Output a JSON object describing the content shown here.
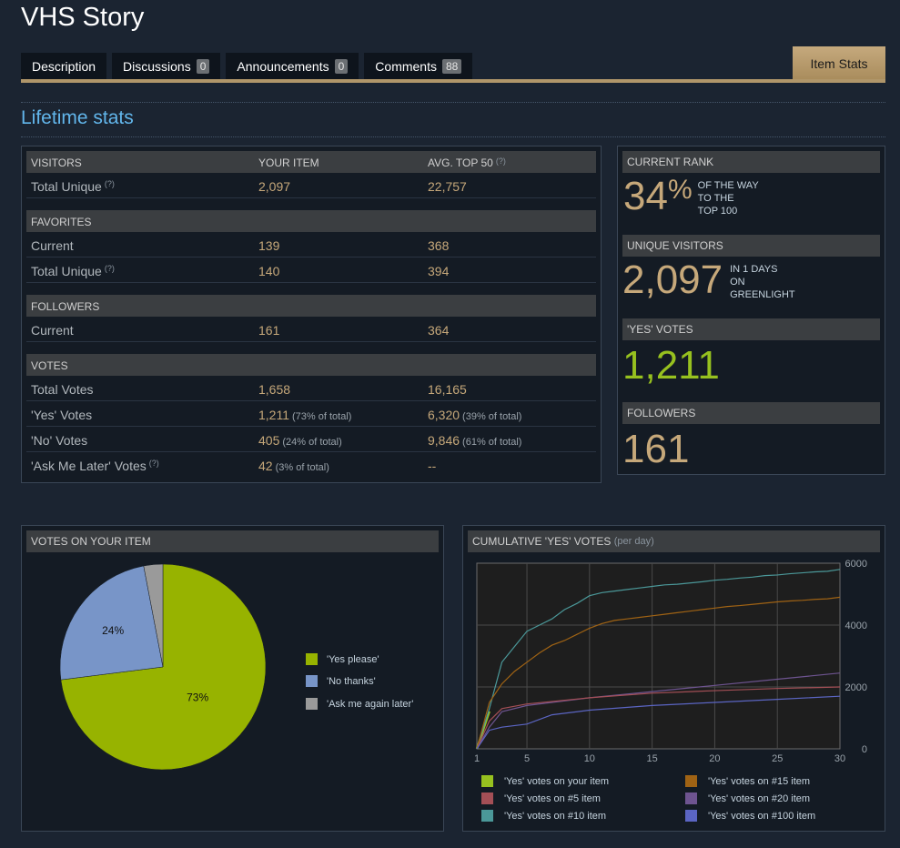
{
  "title": "VHS Story",
  "tabs": [
    {
      "label": "Description",
      "count": null
    },
    {
      "label": "Discussions",
      "count": "0"
    },
    {
      "label": "Announcements",
      "count": "0"
    },
    {
      "label": "Comments",
      "count": "88"
    }
  ],
  "active_tab": "Item Stats",
  "section_title": "Lifetime stats",
  "table": {
    "headers": {
      "col1": "VISITORS",
      "col2": "YOUR ITEM",
      "col3": "AVG. TOP 50",
      "q": "(?)"
    },
    "visitors_total_unique": {
      "label": "Total Unique",
      "q": "(?)",
      "yours": "2,097",
      "avg": "22,757"
    },
    "favorites_header": "FAVORITES",
    "favorites_current": {
      "label": "Current",
      "yours": "139",
      "avg": "368"
    },
    "favorites_total_unique": {
      "label": "Total Unique",
      "q": "(?)",
      "yours": "140",
      "avg": "394"
    },
    "followers_header": "FOLLOWERS",
    "followers_current": {
      "label": "Current",
      "yours": "161",
      "avg": "364"
    },
    "votes_header": "VOTES",
    "votes_total": {
      "label": "Total Votes",
      "yours": "1,658",
      "avg": "16,165"
    },
    "votes_yes": {
      "label": "'Yes' Votes",
      "yours": "1,211",
      "yours_pct": "(73% of total)",
      "avg": "6,320",
      "avg_pct": "(39% of total)"
    },
    "votes_no": {
      "label": "'No' Votes",
      "yours": "405",
      "yours_pct": "(24% of total)",
      "avg": "9,846",
      "avg_pct": "(61% of total)"
    },
    "votes_later": {
      "label": "'Ask Me Later' Votes",
      "q": "(?)",
      "yours": "42",
      "yours_pct": "(3% of total)",
      "avg": "--"
    }
  },
  "side": {
    "rank_header": "CURRENT RANK",
    "rank_value": "34",
    "rank_pct": "%",
    "rank_note": [
      "OF THE WAY",
      "TO THE",
      "TOP 100"
    ],
    "visitors_header": "UNIQUE VISITORS",
    "visitors_value": "2,097",
    "visitors_note": [
      "IN 1 DAYS",
      "ON",
      "GREENLIGHT"
    ],
    "yes_header": "'YES' VOTES",
    "yes_value": "1,211",
    "followers_header": "FOLLOWERS",
    "followers_value": "161"
  },
  "pie_panel": {
    "header": "VOTES ON YOUR ITEM",
    "legend": [
      "'Yes please'",
      "'No thanks'",
      "'Ask me again later'"
    ],
    "colors": [
      "#97b300",
      "#7895c8",
      "#9a9a9a"
    ]
  },
  "line_panel": {
    "header": "CUMULATIVE 'YES' VOTES",
    "subheader": "(per day)",
    "legend": [
      "'Yes' votes on your item",
      "'Yes' votes on #15 item",
      "'Yes' votes on #5 item",
      "'Yes' votes on #20 item",
      "'Yes' votes on #10 item",
      "'Yes' votes on #100 item"
    ],
    "legend_colors": [
      "#97c11f",
      "#a06314",
      "#a44f56",
      "#6e5490",
      "#4b9899",
      "#5b65c3"
    ]
  },
  "chart_data": [
    {
      "type": "pie",
      "title": "VOTES ON YOUR ITEM",
      "categories": [
        "'Yes please'",
        "'No thanks'",
        "'Ask me again later'"
      ],
      "values": [
        73,
        24,
        3
      ],
      "labels": [
        "73%",
        "24%",
        ""
      ]
    },
    {
      "type": "line",
      "title": "CUMULATIVE 'YES' VOTES",
      "subtitle": "(per day)",
      "xlim": [
        1,
        30
      ],
      "ylim": [
        0,
        6000
      ],
      "xticks": [
        1,
        5,
        10,
        15,
        20,
        25,
        30
      ],
      "yticks": [
        0,
        2000,
        4000,
        6000
      ],
      "grid": true,
      "series": [
        {
          "name": "'Yes' votes on your item",
          "color": "#97c11f",
          "x": [
            1,
            2
          ],
          "values": [
            0,
            1211
          ]
        },
        {
          "name": "'Yes' votes on #10 item",
          "color": "#4b9899",
          "x": [
            1,
            2,
            3,
            4,
            5,
            6,
            7,
            8,
            9,
            10,
            11,
            12,
            13,
            14,
            15,
            16,
            17,
            18,
            19,
            20,
            21,
            22,
            23,
            24,
            25,
            26,
            27,
            28,
            29,
            30
          ],
          "values": [
            0,
            1300,
            2800,
            3300,
            3800,
            4000,
            4200,
            4500,
            4700,
            4950,
            5050,
            5100,
            5150,
            5200,
            5250,
            5300,
            5320,
            5360,
            5400,
            5450,
            5480,
            5520,
            5550,
            5600,
            5620,
            5660,
            5690,
            5720,
            5740,
            5800
          ]
        },
        {
          "name": "'Yes' votes on #15 item",
          "color": "#a06314",
          "x": [
            1,
            2,
            3,
            4,
            5,
            6,
            7,
            8,
            9,
            10,
            11,
            12,
            13,
            14,
            15,
            16,
            17,
            18,
            19,
            20,
            21,
            22,
            23,
            24,
            25,
            26,
            27,
            28,
            29,
            30
          ],
          "values": [
            0,
            1500,
            2100,
            2500,
            2800,
            3100,
            3350,
            3500,
            3700,
            3900,
            4050,
            4150,
            4200,
            4250,
            4300,
            4350,
            4400,
            4450,
            4500,
            4550,
            4600,
            4630,
            4670,
            4710,
            4750,
            4780,
            4800,
            4830,
            4850,
            4900
          ]
        },
        {
          "name": "'Yes' votes on #20 item",
          "color": "#6e5490",
          "x": [
            1,
            2,
            3,
            5,
            10,
            15,
            20,
            25,
            30
          ],
          "values": [
            0,
            700,
            1200,
            1400,
            1650,
            1850,
            2050,
            2250,
            2450
          ]
        },
        {
          "name": "'Yes' votes on #5 item",
          "color": "#a44f56",
          "x": [
            1,
            2,
            3,
            5,
            10,
            15,
            20,
            25,
            30
          ],
          "values": [
            0,
            900,
            1300,
            1450,
            1650,
            1800,
            1880,
            1950,
            2000
          ]
        },
        {
          "name": "'Yes' votes on #100 item",
          "color": "#5b65c3",
          "x": [
            1,
            2,
            3,
            5,
            7,
            10,
            15,
            20,
            25,
            30
          ],
          "values": [
            0,
            600,
            700,
            800,
            1100,
            1250,
            1400,
            1500,
            1600,
            1700
          ]
        }
      ]
    }
  ]
}
